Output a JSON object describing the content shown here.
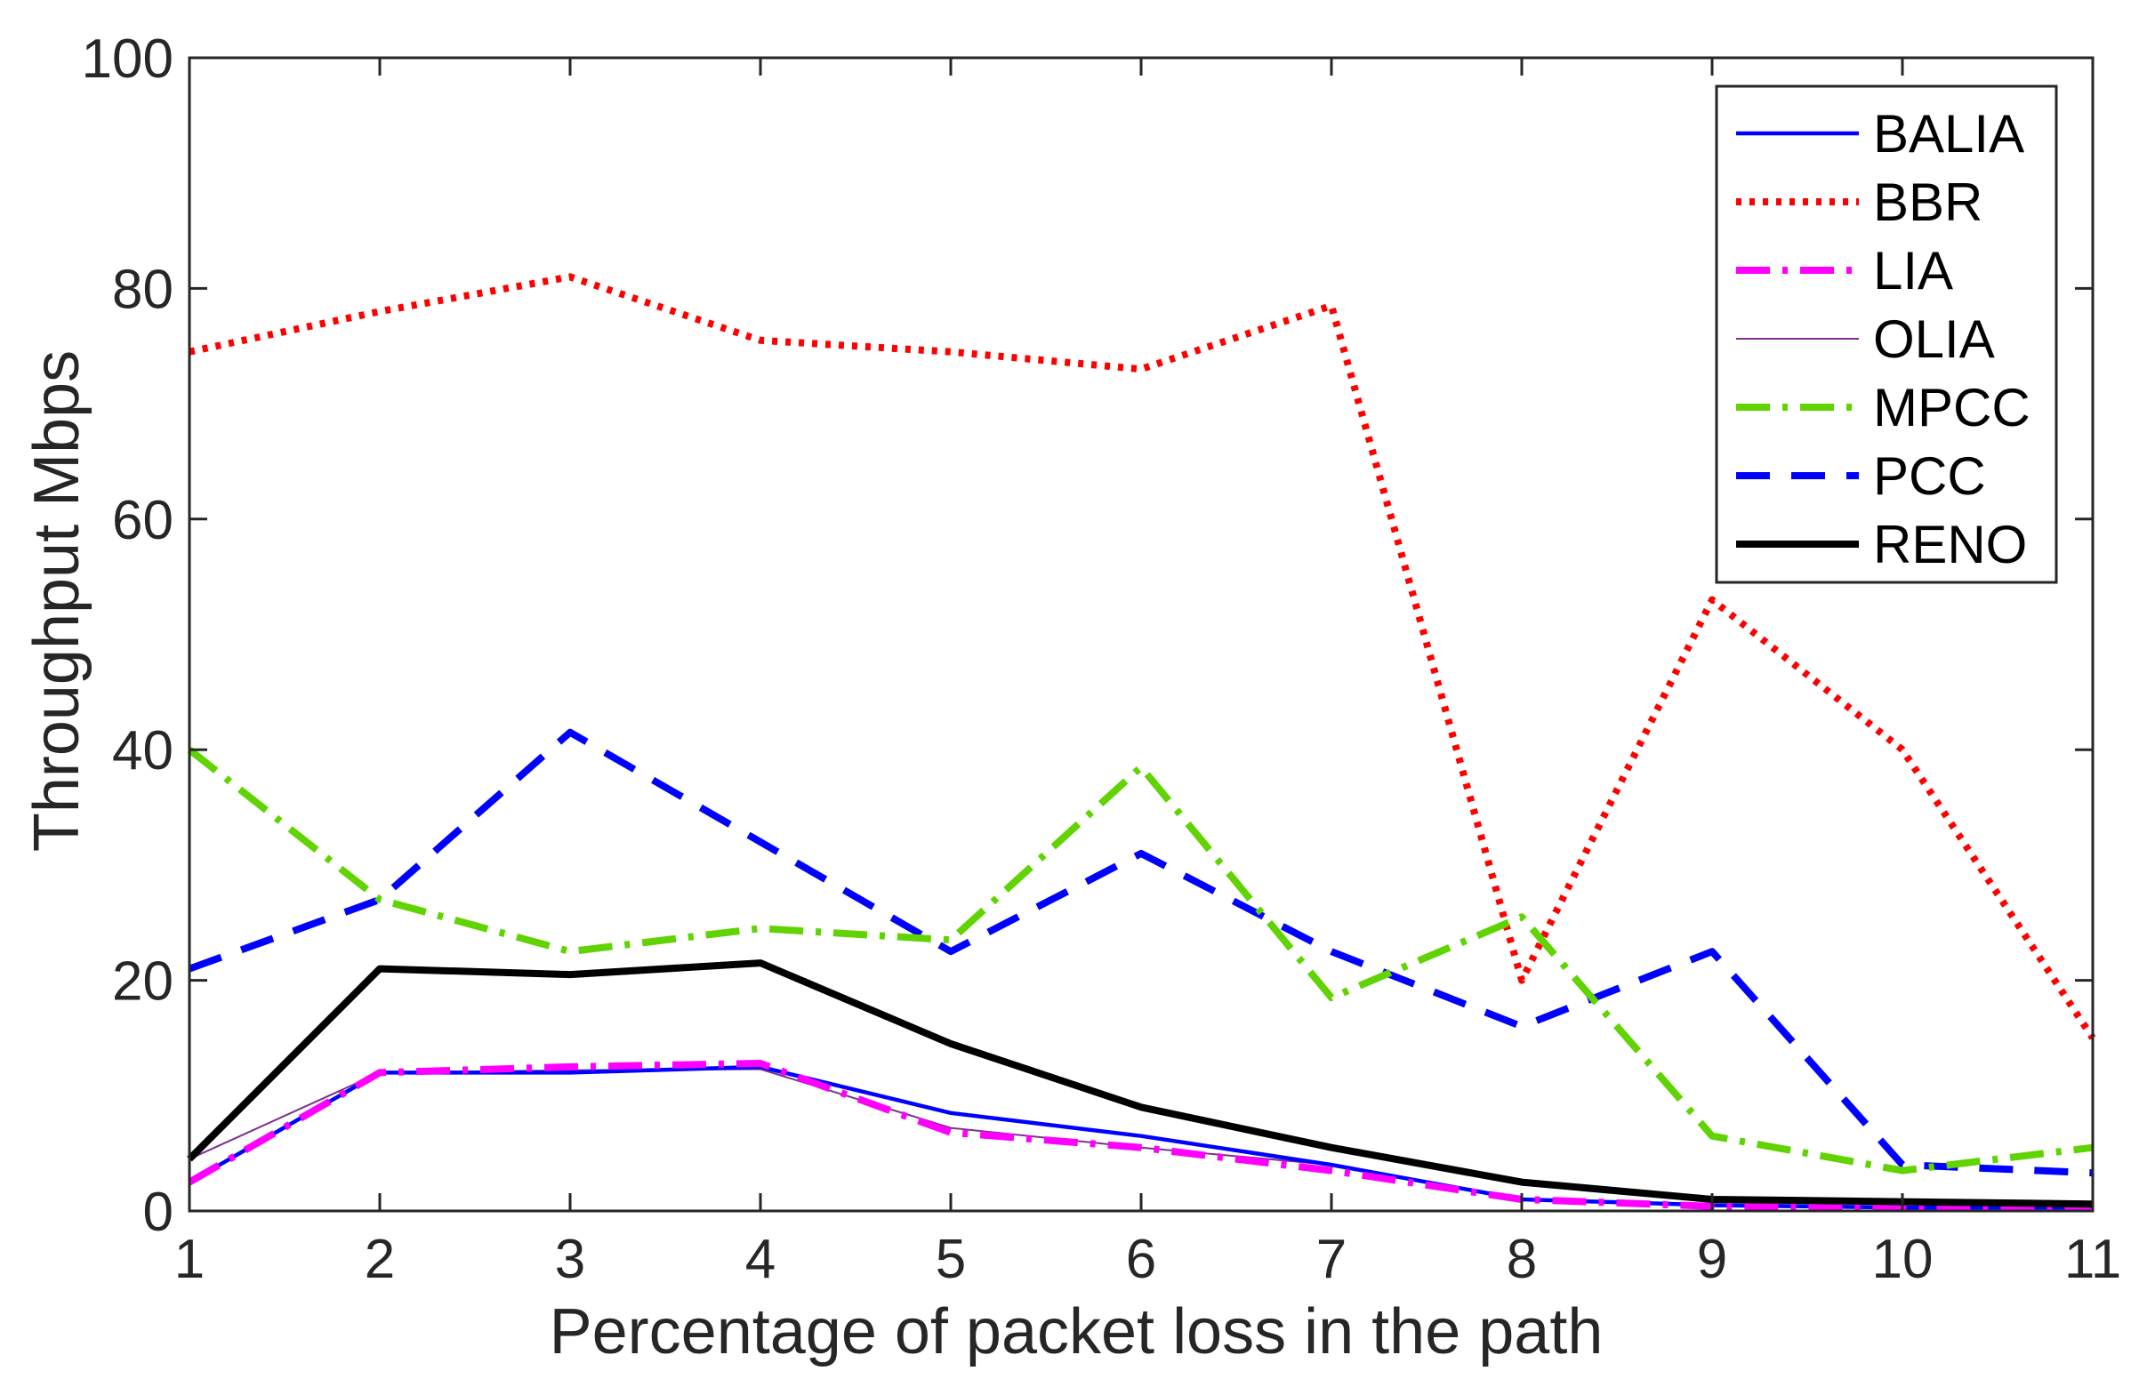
{
  "chart_data": {
    "type": "line",
    "title": "",
    "xlabel": "Percentage of packet loss in the path",
    "ylabel": "Throughput Mbps",
    "xlim": [
      1,
      11
    ],
    "ylim": [
      0,
      100
    ],
    "x": [
      1,
      2,
      3,
      4,
      5,
      6,
      7,
      8,
      9,
      10,
      11
    ],
    "xticks": [
      "1",
      "2",
      "3",
      "4",
      "5",
      "6",
      "7",
      "8",
      "9",
      "10",
      "11"
    ],
    "yticks": [
      "0",
      "20",
      "40",
      "60",
      "80",
      "100"
    ],
    "ytick_values": [
      0,
      20,
      40,
      60,
      80,
      100
    ],
    "legend_position": "top-right",
    "series": [
      {
        "name": "BALIA",
        "color": "#0000ff",
        "style": "solid",
        "width": "thin",
        "values": [
          2.5,
          12,
          12,
          12.5,
          8.5,
          6.5,
          4,
          1,
          0.5,
          0.3,
          0.3
        ]
      },
      {
        "name": "BBR",
        "color": "#ff0000",
        "style": "dotted",
        "width": "thick",
        "values": [
          74.5,
          78,
          81,
          75.5,
          74.5,
          73,
          78.5,
          20,
          53,
          40,
          15
        ]
      },
      {
        "name": "LIA",
        "color": "#ff00ff",
        "style": "dashdot",
        "width": "thick",
        "values": [
          2.5,
          12,
          12.5,
          12.8,
          6.8,
          5.5,
          3.5,
          1,
          0.4,
          0.2,
          0.2
        ]
      },
      {
        "name": "OLIA",
        "color": "#7e2f8e",
        "style": "solid",
        "width": "hair",
        "values": [
          4.5,
          12,
          12.2,
          12.3,
          7.2,
          5.5,
          4,
          1,
          0.4,
          0.2,
          0.2
        ]
      },
      {
        "name": "MPCC",
        "color": "#5fd400",
        "style": "dashdot",
        "width": "thick",
        "values": [
          40,
          27,
          22.5,
          24.5,
          23.5,
          38.5,
          18.5,
          25.5,
          6.5,
          3.5,
          5.5
        ]
      },
      {
        "name": "PCC",
        "color": "#0000ff",
        "style": "dashed",
        "width": "thick",
        "values": [
          21,
          27,
          41.5,
          32,
          22.5,
          31,
          22.5,
          16,
          22.5,
          4,
          3.3
        ]
      },
      {
        "name": "RENO",
        "color": "#000000",
        "style": "solid",
        "width": "thick",
        "values": [
          4.5,
          21,
          20.5,
          21.5,
          14.5,
          9,
          5.5,
          2.5,
          1,
          0.8,
          0.6
        ]
      }
    ]
  }
}
